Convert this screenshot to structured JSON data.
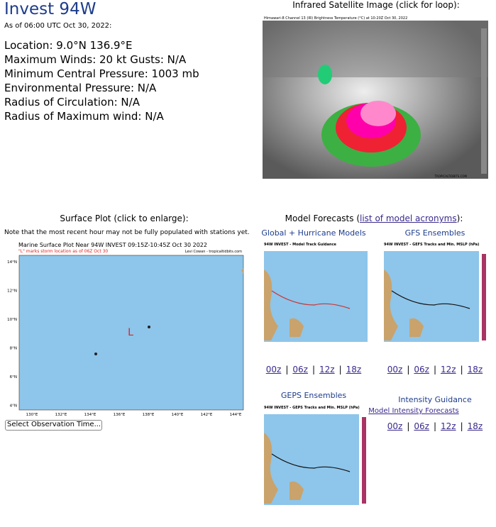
{
  "header": {
    "title": "Invest 94W",
    "as_of": "As of 06:00 UTC Oct 30, 2022:"
  },
  "details": [
    "Location: 9.0°N 136.9°E",
    "Maximum Winds: 20 kt  Gusts: N/A",
    "Minimum Central Pressure: 1003 mb",
    "Environmental Pressure: N/A",
    "Radius of Circulation: N/A",
    "Radius of Maximum wind: N/A"
  ],
  "satellite": {
    "heading": "Infrared Satellite Image (click for loop):",
    "image_title": "Himawari-8 Channel 13 (IR) Brightness Temperature (°C) at 10:20Z Oct 30, 2022",
    "credit": "TROPICALTIDBITS.COM"
  },
  "surface_plot": {
    "heading": "Surface Plot (click to enlarge):",
    "note": "Note that the most recent hour may not be fully populated with stations yet.",
    "map_title": "Marine Surface Plot Near 94W INVEST 09:15Z-10:45Z Oct 30 2022",
    "map_subtitle": "\"L\" marks storm location as of 06Z Oct 30",
    "credit": "Levi Cowan - tropicaltidbits.com",
    "storm_marker": "L",
    "lat_labels": [
      "14°N",
      "12°N",
      "10°N",
      "8°N",
      "6°N",
      "4°N"
    ],
    "lon_labels": [
      "130°E",
      "132°E",
      "134°E",
      "136°E",
      "138°E",
      "140°E",
      "142°E",
      "144°E"
    ],
    "select": "Select Observation Time..."
  },
  "model_forecasts": {
    "heading_prefix": "Model Forecasts (",
    "heading_link": "list of model acronyms",
    "heading_suffix": "):",
    "separator": "|",
    "panels": [
      {
        "title": "Global + Hurricane Models",
        "image_title": "94W INVEST - Model Track Guidance",
        "runs": [
          "00z",
          "06z",
          "12z",
          "18z"
        ]
      },
      {
        "title": "GFS Ensembles",
        "image_title": "94W INVEST - GEFS Tracks and Min. MSLP (hPa)",
        "runs": [
          "00z",
          "06z",
          "12z",
          "18z"
        ]
      },
      {
        "title": "GEPS Ensembles",
        "image_title": "94W INVEST - GEPS Tracks and Min. MSLP (hPa)"
      }
    ]
  },
  "intensity": {
    "title": "Intensity Guidance",
    "link": "Model Intensity Forecasts",
    "runs": [
      "00z",
      "06z",
      "12z",
      "18z"
    ]
  }
}
